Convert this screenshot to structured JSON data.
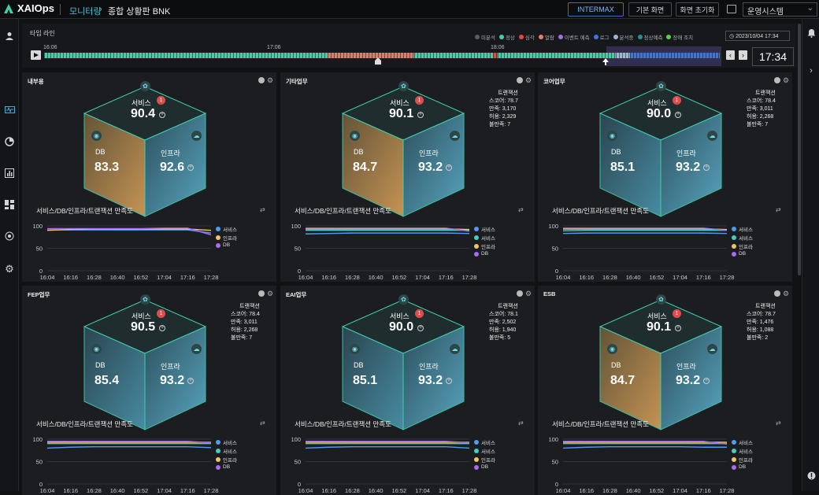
{
  "topbar": {
    "app_name": "XAIOps",
    "crumb_monitoring": "모니터링",
    "crumb_arrow": "›",
    "crumb_page": "종합 상황판 BNK",
    "btn_intermax": "INTERMAX",
    "btn_default_view": "기본 화면",
    "btn_reset_view": "화면 초기화",
    "system_select": "운영시스템"
  },
  "timeline": {
    "title": "타임 라인",
    "legend": [
      {
        "label": "미분석",
        "color": "#5a5d63"
      },
      {
        "label": "정상",
        "color": "#3fd0a6"
      },
      {
        "label": "심각",
        "color": "#e8463a"
      },
      {
        "label": "얼람",
        "color": "#f07a6a"
      },
      {
        "label": "이벤트 예측",
        "color": "#a56de0"
      },
      {
        "label": "로그",
        "color": "#3a78e0"
      },
      {
        "label": "분석중",
        "color": "#9ab7d6"
      },
      {
        "label": "정상예측",
        "color": "#2e8c96"
      },
      {
        "label": "장애 조치",
        "color": "#5bd14a"
      }
    ],
    "tick_labels": [
      "16:06",
      "17:06",
      "18:06"
    ],
    "date": "2023/10/04 17:34",
    "clock": "17:34"
  },
  "panels": [
    {
      "title": "내부용",
      "service_label": "서비스",
      "service_value": "90.4",
      "badge": "1",
      "db_label": "DB",
      "db_value": "83.3",
      "infra_label": "인프라",
      "infra_value": "92.6",
      "db_warn": true,
      "tx": null,
      "chart_title": "서비스/DB/인프라/트랜잭션 만족도"
    },
    {
      "title": "기타업무",
      "service_label": "서비스",
      "service_value": "90.1",
      "badge": "1",
      "db_label": "DB",
      "db_value": "84.7",
      "infra_label": "인프라",
      "infra_value": "93.2",
      "db_warn": true,
      "tx": {
        "header": "트랜잭션",
        "rows": [
          "스코어: 78.7",
          "만족: 3,170",
          "허용: 2,329",
          "불만족: 7"
        ]
      },
      "chart_title": "서비스/DB/인프라/트랜잭션 만족도"
    },
    {
      "title": "코어업무",
      "service_label": "서비스",
      "service_value": "90.0",
      "badge": "1",
      "db_label": "DB",
      "db_value": "85.1",
      "infra_label": "인프라",
      "infra_value": "93.2",
      "db_warn": false,
      "tx": {
        "header": "트랜잭션",
        "rows": [
          "스코어: 78.4",
          "만족: 3,011",
          "허용: 2,268",
          "불만족: 7"
        ]
      },
      "chart_title": "서비스/DB/인프라/트랜잭션 만족도"
    },
    {
      "title": "FEP업무",
      "service_label": "서비스",
      "service_value": "90.5",
      "badge": "1",
      "db_label": "DB",
      "db_value": "85.4",
      "infra_label": "인프라",
      "infra_value": "93.2",
      "db_warn": false,
      "tx": {
        "header": "트랜잭션",
        "rows": [
          "스코어: 78.4",
          "만족: 3,011",
          "허용: 2,268",
          "불만족: 7"
        ]
      },
      "chart_title": "서비스/DB/인프라/트랜잭션 만족도"
    },
    {
      "title": "EAI업무",
      "service_label": "서비스",
      "service_value": "90.0",
      "badge": "1",
      "db_label": "DB",
      "db_value": "85.1",
      "infra_label": "인프라",
      "infra_value": "93.2",
      "db_warn": false,
      "tx": {
        "header": "트랜잭션",
        "rows": [
          "스코어: 78.1",
          "만족: 2,502",
          "허용: 1,940",
          "불만족: 5"
        ]
      },
      "chart_title": "서비스/DB/인프라/트랜잭션 만족도"
    },
    {
      "title": "ESB",
      "service_label": "서비스",
      "service_value": "90.1",
      "badge": "1",
      "db_label": "DB",
      "db_value": "84.7",
      "infra_label": "인프라",
      "infra_value": "93.2",
      "db_warn": true,
      "tx": {
        "header": "트랜잭션",
        "rows": [
          "스코어: 78.7",
          "만족: 1,476",
          "허용: 1,088",
          "불만족: 2"
        ]
      },
      "chart_title": "서비스/DB/인프라/트랜잭션 만족도"
    }
  ],
  "chart_data": [
    {
      "type": "line",
      "title": "서비스/DB/인프라/트랜잭션 만족도",
      "x": [
        "16:04",
        "16:16",
        "16:28",
        "16:40",
        "16:52",
        "17:04",
        "17:16",
        "17:28"
      ],
      "ylim": [
        0,
        100
      ],
      "yticks": [
        "100",
        "50",
        "0"
      ],
      "series": [
        {
          "name": "서비스",
          "color": "#4f9cf0",
          "values": [
            91,
            91,
            91,
            91,
            91,
            91,
            91,
            84
          ]
        },
        {
          "name": "인프라",
          "color": "#f0c56a",
          "values": [
            90,
            92,
            93,
            93,
            93,
            93,
            93,
            90
          ]
        },
        {
          "name": "DB",
          "color": "#a66df0",
          "values": [
            94,
            94,
            94,
            94,
            94,
            95,
            95,
            80
          ]
        }
      ]
    },
    {
      "type": "line",
      "title": "서비스/DB/인프라/트랜잭션 만족도",
      "x": [
        "16:04",
        "16:16",
        "16:28",
        "16:40",
        "16:52",
        "17:04",
        "17:16",
        "17:28"
      ],
      "ylim": [
        0,
        100
      ],
      "yticks": [
        "100",
        "50",
        "0"
      ],
      "series": [
        {
          "name": "서비스",
          "color": "#4f9cf0",
          "values": [
            82,
            83,
            84,
            84,
            84,
            84,
            84,
            83
          ]
        },
        {
          "name": "서비스",
          "color": "#3fd0c0",
          "values": [
            90,
            90,
            90,
            90,
            90,
            90,
            90,
            90
          ]
        },
        {
          "name": "인프라",
          "color": "#f0c56a",
          "values": [
            93,
            93,
            93,
            93,
            93,
            93,
            93,
            92
          ]
        },
        {
          "name": "DB",
          "color": "#a66df0",
          "values": [
            95,
            95,
            95,
            95,
            95,
            95,
            95,
            88
          ]
        }
      ]
    },
    {
      "type": "line",
      "title": "서비스/DB/인프라/트랜잭션 만족도",
      "x": [
        "16:04",
        "16:16",
        "16:28",
        "16:40",
        "16:52",
        "17:04",
        "17:16",
        "17:28"
      ],
      "ylim": [
        0,
        100
      ],
      "yticks": [
        "100",
        "50",
        "0"
      ],
      "series": [
        {
          "name": "서비스",
          "color": "#4f9cf0",
          "values": [
            83,
            84,
            84,
            84,
            84,
            84,
            84,
            83
          ]
        },
        {
          "name": "서비스",
          "color": "#3fd0c0",
          "values": [
            89,
            90,
            90,
            90,
            90,
            90,
            90,
            90
          ]
        },
        {
          "name": "인프라",
          "color": "#f0c56a",
          "values": [
            93,
            93,
            93,
            93,
            93,
            93,
            93,
            92
          ]
        },
        {
          "name": "DB",
          "color": "#a66df0",
          "values": [
            95,
            95,
            95,
            95,
            95,
            95,
            95,
            90
          ]
        }
      ]
    },
    {
      "type": "line",
      "title": "서비스/DB/인프라/트랜잭션 만족도",
      "x": [
        "16:04",
        "16:16",
        "16:28",
        "16:40",
        "16:52",
        "17:04",
        "17:16",
        "17:28"
      ],
      "ylim": [
        0,
        100
      ],
      "yticks": [
        "100",
        "50",
        "0"
      ],
      "series": [
        {
          "name": "서비스",
          "color": "#4f9cf0",
          "values": [
            80,
            82,
            83,
            83,
            83,
            83,
            83,
            81
          ]
        },
        {
          "name": "서비스",
          "color": "#3fd0c0",
          "values": [
            90,
            90,
            90,
            90,
            90,
            90,
            90,
            90
          ]
        },
        {
          "name": "인프라",
          "color": "#f0c56a",
          "values": [
            93,
            93,
            93,
            93,
            93,
            93,
            93,
            93
          ]
        },
        {
          "name": "DB",
          "color": "#a66df0",
          "values": [
            95,
            95,
            95,
            95,
            95,
            95,
            95,
            92
          ]
        }
      ]
    },
    {
      "type": "line",
      "title": "서비스/DB/인프라/트랜잭션 만족도",
      "x": [
        "16:04",
        "16:16",
        "16:28",
        "16:40",
        "16:52",
        "17:04",
        "17:16",
        "17:28"
      ],
      "ylim": [
        0,
        100
      ],
      "yticks": [
        "100",
        "50",
        "0"
      ],
      "series": [
        {
          "name": "서비스",
          "color": "#4f9cf0",
          "values": [
            80,
            82,
            83,
            83,
            83,
            83,
            83,
            80
          ]
        },
        {
          "name": "서비스",
          "color": "#3fd0c0",
          "values": [
            90,
            90,
            90,
            90,
            90,
            90,
            90,
            90
          ]
        },
        {
          "name": "인프라",
          "color": "#f0c56a",
          "values": [
            93,
            93,
            93,
            93,
            93,
            93,
            93,
            93
          ]
        },
        {
          "name": "DB",
          "color": "#a66df0",
          "values": [
            95,
            95,
            95,
            95,
            95,
            95,
            95,
            92
          ]
        }
      ]
    },
    {
      "type": "line",
      "title": "서비스/DB/인프라/트랜잭션 만족도",
      "x": [
        "16:04",
        "16:16",
        "16:28",
        "16:40",
        "16:52",
        "17:04",
        "17:16",
        "17:28"
      ],
      "ylim": [
        0,
        100
      ],
      "yticks": [
        "100",
        "50",
        "0"
      ],
      "series": [
        {
          "name": "서비스",
          "color": "#4f9cf0",
          "values": [
            80,
            82,
            83,
            83,
            83,
            83,
            82,
            82
          ]
        },
        {
          "name": "서비스",
          "color": "#3fd0c0",
          "values": [
            90,
            90,
            90,
            90,
            90,
            90,
            90,
            90
          ]
        },
        {
          "name": "인프라",
          "color": "#f0c56a",
          "values": [
            93,
            93,
            93,
            93,
            93,
            93,
            93,
            93
          ]
        },
        {
          "name": "DB",
          "color": "#a66df0",
          "values": [
            95,
            95,
            95,
            95,
            95,
            95,
            95,
            89
          ]
        }
      ]
    }
  ]
}
